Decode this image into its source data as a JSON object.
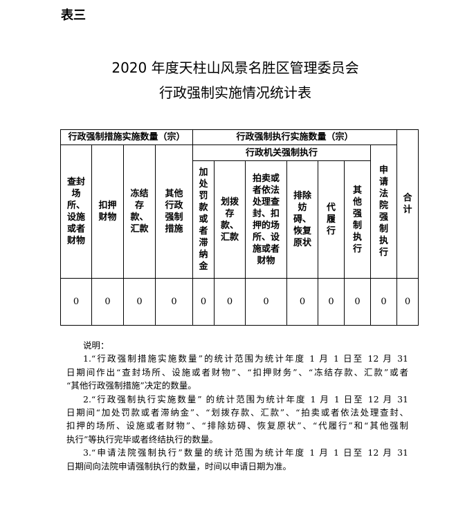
{
  "doc_label": "表三",
  "title_line1": "2020 年度天柱山风景名胜区管理委员会",
  "title_line2": "行政强制实施情况统计表",
  "table": {
    "group_measures": "行政强制措施实施数量（宗）",
    "group_enforcement": "行政强制执行实施数量（宗）",
    "subgroup_admin": "行政机关强制执行",
    "columns": [
      "查封场所、设施或者财物",
      "扣押财物",
      "冻结存款、汇款",
      "其他行政强制措施",
      "加处罚款或者滞纳金",
      "划拨存款、汇款",
      "拍卖或者依法处理查封、扣押的场所、设施或者财物",
      "排除妨碍、恢复原状",
      "代履行",
      "其他强制执行",
      "申请法院强制执行",
      "合计"
    ],
    "values": [
      "0",
      "0",
      "0",
      "0",
      "0",
      "0",
      "0",
      "0",
      "0",
      "0",
      "0",
      "0"
    ]
  },
  "notes": {
    "heading": "说明：",
    "lines": [
      "1.“行政强制措施实施数量”的统计范围为统计年度 1 月 1 日至 12 月 31",
      "日期间作出“查封场所、设施或者财物”、“扣押财务”、“冻结存款、汇款”或者",
      "“其他行政强制措施”决定的数量。",
      "2.“行政强制执行实施数量” 的统计范围为统计年度 1 月 1 日至 12 月 31",
      "日期间“加处罚款或者滞纳金”、“划拨存款、汇款”、“拍卖或者依法处理查封、",
      "扣押的场所、设施或者财物”、“排除妨碍、恢复原状”、“代履行”和“其他强制",
      "执行”等执行完毕或者终结执行的数量。",
      "3.“申请法院强制执行”数量的统计范围为统计年度 1 月 1 日至 12 月 31",
      "日期间向法院申请强制执行的数量，时间以申请日期为准。"
    ]
  }
}
